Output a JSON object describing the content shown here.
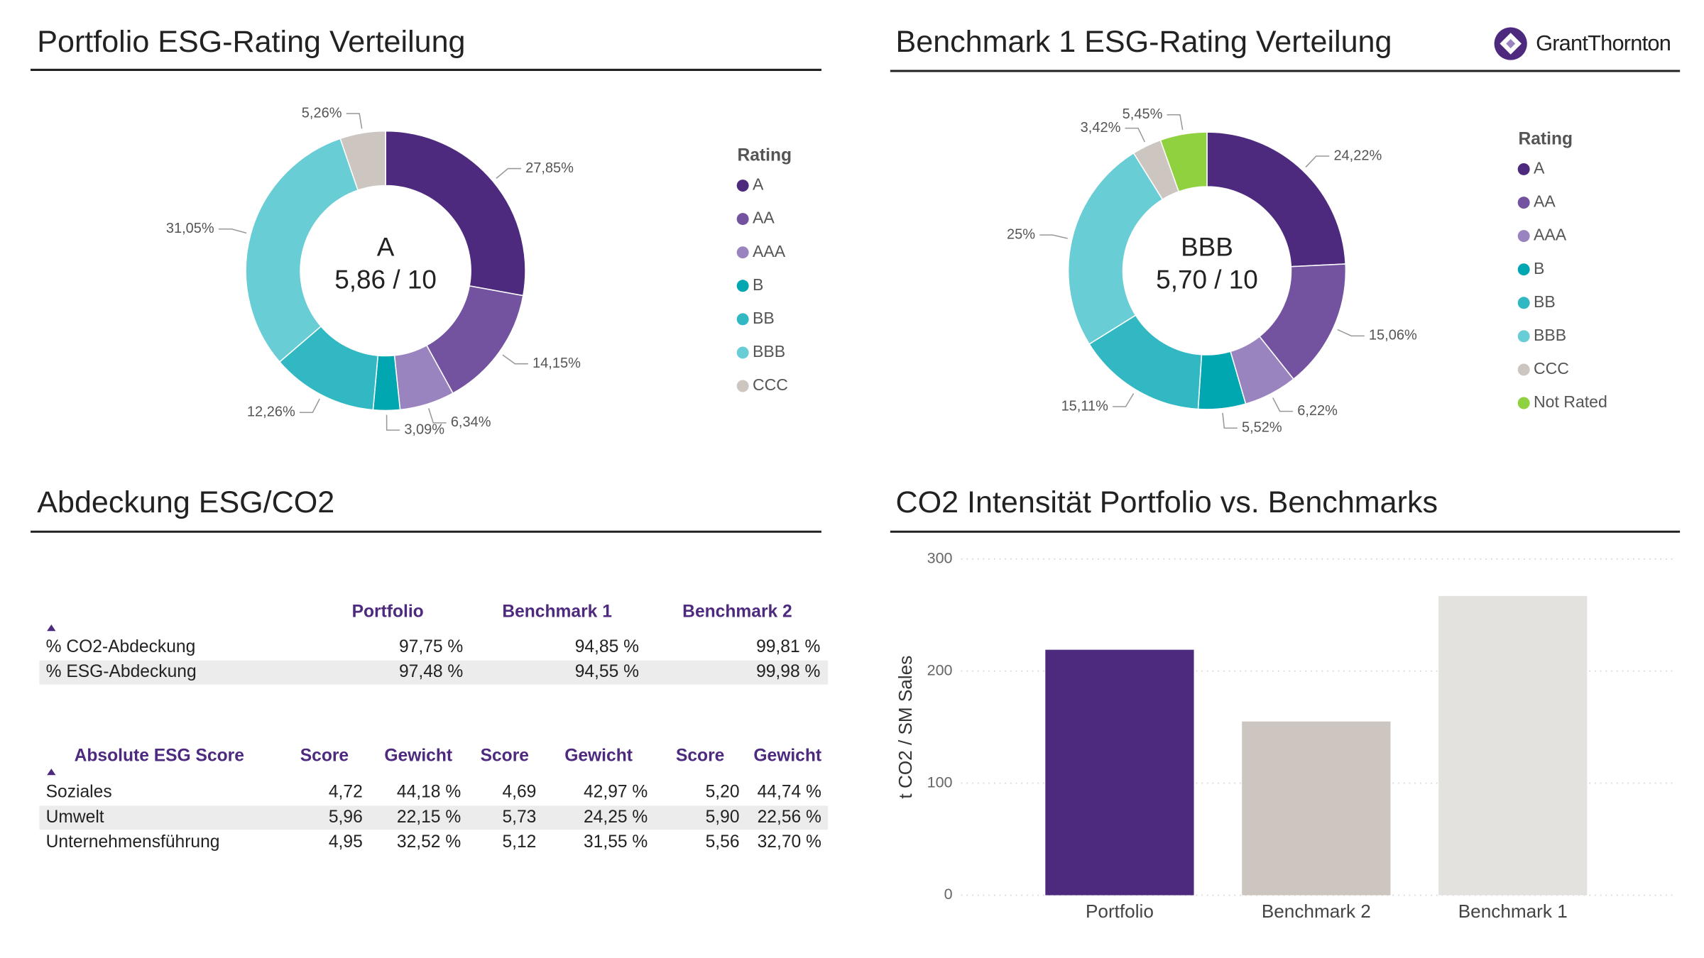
{
  "chart_data": [
    {
      "type": "donut",
      "title": "Portfolio ESG-Rating Verteilung",
      "center_label": "A",
      "center_score": "5,86 / 10",
      "legend_title": "Rating",
      "categories": [
        "A",
        "AA",
        "AAA",
        "B",
        "BB",
        "BBB",
        "CCC"
      ],
      "values": [
        27.85,
        14.15,
        6.34,
        3.09,
        12.26,
        31.05,
        5.26
      ],
      "value_labels": [
        "27,85%",
        "14,15%",
        "6,34%",
        "3,09%",
        "12,26%",
        "31,05%",
        "5,26%"
      ],
      "colors": [
        "#4e2a7f",
        "#7352a0",
        "#9a84c0",
        "#00a6b0",
        "#32b8c3",
        "#68cdd5",
        "#cdc5bf"
      ]
    },
    {
      "type": "donut",
      "title": "Benchmark 1 ESG-Rating Verteilung",
      "center_label": "BBB",
      "center_score": "5,70 / 10",
      "legend_title": "Rating",
      "categories": [
        "A",
        "AA",
        "AAA",
        "B",
        "BB",
        "BBB",
        "CCC",
        "Not Rated"
      ],
      "values": [
        24.22,
        15.06,
        6.22,
        5.52,
        15.11,
        25,
        3.42,
        5.45
      ],
      "value_labels": [
        "24,22%",
        "15,06%",
        "6,22%",
        "5,52%",
        "15,11%",
        "25%",
        "3,42%",
        "5,45%"
      ],
      "colors": [
        "#4e2a7f",
        "#7352a0",
        "#9a84c0",
        "#00a6b0",
        "#32b8c3",
        "#68cdd5",
        "#cdc5bf",
        "#8fd13f"
      ]
    },
    {
      "type": "bar",
      "title": "CO2 Intensität Portfolio vs. Benchmarks",
      "y_label": "t CO2 / SM Sales",
      "categories": [
        "Portfolio",
        "Benchmark 2",
        "Benchmark 1"
      ],
      "values": [
        219,
        155,
        267
      ],
      "colors": [
        "#4e2a7f",
        "#cdc5bf",
        "#e4e2df"
      ],
      "ylim": [
        0,
        300
      ],
      "yticks": [
        0,
        100,
        200,
        300
      ],
      "grid": true
    }
  ],
  "logo": "GrantThornton",
  "coverage": {
    "title": "Abdeckung ESG/CO2",
    "columns": [
      "Portfolio",
      "Benchmark 1",
      "Benchmark 2"
    ],
    "rows": [
      {
        "label": "% CO2-Abdeckung",
        "cells": [
          "97,75 %",
          "94,85 %",
          "99,81 %"
        ]
      },
      {
        "label": "% ESG-Abdeckung",
        "cells": [
          "97,48 %",
          "94,55 %",
          "99,98 %"
        ]
      }
    ]
  },
  "score": {
    "header": "Absolute ESG Score",
    "columns": [
      "Score",
      "Gewicht",
      "Score",
      "Gewicht",
      "Score",
      "Gewicht"
    ],
    "rows": [
      {
        "label": "Soziales",
        "cells": [
          "4,72",
          "44,18 %",
          "4,69",
          "42,97 %",
          "5,20",
          "44,74 %"
        ]
      },
      {
        "label": "Umwelt",
        "cells": [
          "5,96",
          "22,15 %",
          "5,73",
          "24,25 %",
          "5,90",
          "22,56 %"
        ]
      },
      {
        "label": "Unternehmensführung",
        "cells": [
          "4,95",
          "32,52 %",
          "5,12",
          "31,55 %",
          "5,56",
          "32,70 %"
        ]
      }
    ]
  }
}
